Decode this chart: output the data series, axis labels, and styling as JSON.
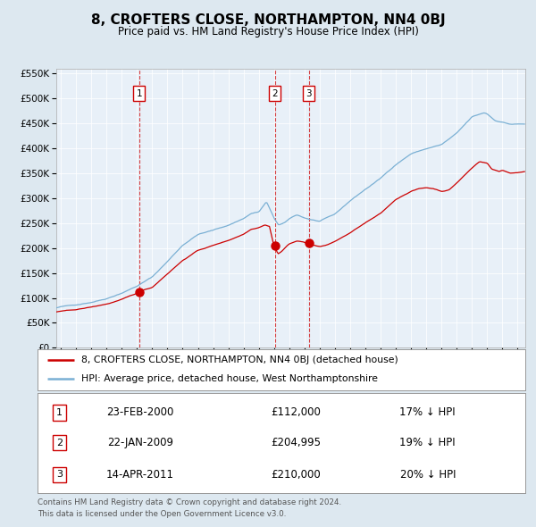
{
  "title": "8, CROFTERS CLOSE, NORTHAMPTON, NN4 0BJ",
  "subtitle": "Price paid vs. HM Land Registry's House Price Index (HPI)",
  "transactions": [
    {
      "num": 1,
      "date": "23-FEB-2000",
      "price": 112000,
      "pct": "17%",
      "date_val": 2000.14
    },
    {
      "num": 2,
      "date": "22-JAN-2009",
      "price": 204995,
      "pct": "19%",
      "date_val": 2009.06
    },
    {
      "num": 3,
      "date": "14-APR-2011",
      "price": 210000,
      "pct": "20%",
      "date_val": 2011.29
    }
  ],
  "legend_line1": "8, CROFTERS CLOSE, NORTHAMPTON, NN4 0BJ (detached house)",
  "legend_line2": "HPI: Average price, detached house, West Northamptonshire",
  "footer_line1": "Contains HM Land Registry data © Crown copyright and database right 2024.",
  "footer_line2": "This data is licensed under the Open Government Licence v3.0.",
  "red_color": "#cc0000",
  "blue_color": "#7ab0d4",
  "bg_color": "#dde8f0",
  "plot_bg": "#e8f0f8",
  "ylim": [
    0,
    560000
  ],
  "xlim_start": 1994.7,
  "xlim_end": 2025.5,
  "hpi_anchors": [
    [
      1994.7,
      80000
    ],
    [
      1995.0,
      82000
    ],
    [
      1996.0,
      86000
    ],
    [
      1997.0,
      92000
    ],
    [
      1998.0,
      100000
    ],
    [
      1999.0,
      112000
    ],
    [
      2000.0,
      126000
    ],
    [
      2001.0,
      144000
    ],
    [
      2002.0,
      175000
    ],
    [
      2003.0,
      208000
    ],
    [
      2004.0,
      230000
    ],
    [
      2005.0,
      238000
    ],
    [
      2006.0,
      248000
    ],
    [
      2007.0,
      262000
    ],
    [
      2007.5,
      272000
    ],
    [
      2008.0,
      275000
    ],
    [
      2008.5,
      295000
    ],
    [
      2009.0,
      262000
    ],
    [
      2009.3,
      248000
    ],
    [
      2009.7,
      252000
    ],
    [
      2010.0,
      260000
    ],
    [
      2010.5,
      268000
    ],
    [
      2011.0,
      262000
    ],
    [
      2011.5,
      258000
    ],
    [
      2012.0,
      255000
    ],
    [
      2013.0,
      268000
    ],
    [
      2014.0,
      295000
    ],
    [
      2015.0,
      318000
    ],
    [
      2016.0,
      340000
    ],
    [
      2017.0,
      368000
    ],
    [
      2018.0,
      390000
    ],
    [
      2019.0,
      400000
    ],
    [
      2020.0,
      408000
    ],
    [
      2021.0,
      430000
    ],
    [
      2022.0,
      462000
    ],
    [
      2022.8,
      470000
    ],
    [
      2023.0,
      468000
    ],
    [
      2023.5,
      455000
    ],
    [
      2024.0,
      452000
    ],
    [
      2024.5,
      448000
    ],
    [
      2025.5,
      448000
    ]
  ],
  "red_anchors": [
    [
      1994.7,
      72000
    ],
    [
      1995.0,
      73000
    ],
    [
      1996.0,
      76000
    ],
    [
      1997.0,
      81000
    ],
    [
      1998.0,
      87000
    ],
    [
      1999.0,
      96000
    ],
    [
      2000.0,
      108000
    ],
    [
      2000.14,
      112000
    ],
    [
      2001.0,
      120000
    ],
    [
      2002.0,
      148000
    ],
    [
      2003.0,
      175000
    ],
    [
      2004.0,
      195000
    ],
    [
      2005.0,
      205000
    ],
    [
      2006.0,
      215000
    ],
    [
      2007.0,
      228000
    ],
    [
      2007.5,
      238000
    ],
    [
      2008.0,
      242000
    ],
    [
      2008.4,
      248000
    ],
    [
      2008.7,
      245000
    ],
    [
      2009.0,
      205000
    ],
    [
      2009.06,
      204995
    ],
    [
      2009.25,
      190000
    ],
    [
      2009.5,
      195000
    ],
    [
      2009.8,
      205000
    ],
    [
      2010.0,
      210000
    ],
    [
      2010.5,
      216000
    ],
    [
      2011.0,
      213000
    ],
    [
      2011.29,
      210000
    ],
    [
      2011.5,
      208000
    ],
    [
      2012.0,
      205000
    ],
    [
      2012.5,
      208000
    ],
    [
      2013.0,
      215000
    ],
    [
      2014.0,
      232000
    ],
    [
      2015.0,
      252000
    ],
    [
      2016.0,
      270000
    ],
    [
      2017.0,
      298000
    ],
    [
      2018.0,
      315000
    ],
    [
      2018.5,
      320000
    ],
    [
      2019.0,
      322000
    ],
    [
      2019.5,
      320000
    ],
    [
      2020.0,
      315000
    ],
    [
      2020.5,
      318000
    ],
    [
      2021.0,
      332000
    ],
    [
      2022.0,
      362000
    ],
    [
      2022.5,
      375000
    ],
    [
      2023.0,
      372000
    ],
    [
      2023.3,
      360000
    ],
    [
      2023.8,
      355000
    ],
    [
      2024.0,
      358000
    ],
    [
      2024.5,
      352000
    ],
    [
      2025.5,
      355000
    ]
  ]
}
